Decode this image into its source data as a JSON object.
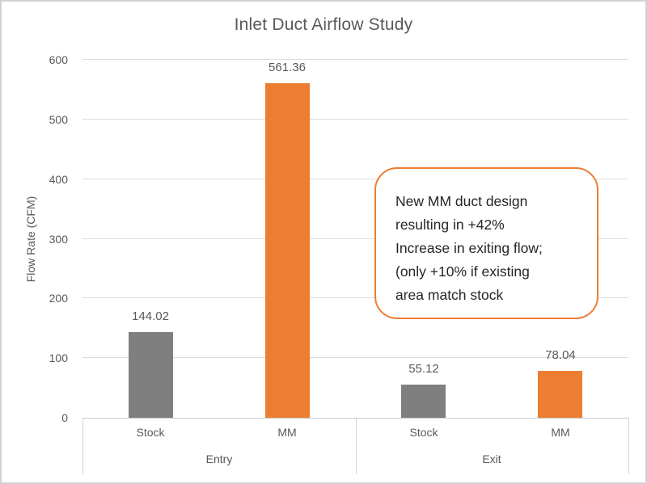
{
  "chart_data": {
    "type": "bar",
    "title": "Inlet Duct Airflow Study",
    "xlabel": "",
    "ylabel": "Flow Rate (CFM)",
    "ylim": [
      0,
      600
    ],
    "y_ticks": [
      0,
      100,
      200,
      300,
      400,
      500,
      600
    ],
    "grid": true,
    "legend": false,
    "categories": [
      "Stock",
      "MM",
      "Stock",
      "MM"
    ],
    "group_labels": [
      "Entry",
      "Exit"
    ],
    "groups": [
      {
        "label": "Entry",
        "bars": [
          {
            "category": "Stock",
            "value": 144.02,
            "data_label": "144.02",
            "color": "#7F7F7F"
          },
          {
            "category": "MM",
            "value": 561.36,
            "data_label": "561.36",
            "color": "#ED7D31"
          }
        ]
      },
      {
        "label": "Exit",
        "bars": [
          {
            "category": "Stock",
            "value": 55.12,
            "data_label": "55.12",
            "color": "#7F7F7F"
          },
          {
            "category": "MM",
            "value": 78.04,
            "data_label": "78.04",
            "color": "#ED7D31"
          }
        ]
      }
    ],
    "annotation": "New MM duct design resulting in +42% Increase in exiting flow; (only +10% if existing area match stock",
    "annotation_lines": [
      "New MM duct design",
      "resulting in +42%",
      "Increase in exiting flow;",
      "(only +10% if existing",
      "area match stock"
    ],
    "colors": {
      "stock_series": "#7F7F7F",
      "mm_series": "#ED7D31",
      "gridline": "#DCDCDC",
      "text": "#595959",
      "annotation_border": "#ED7D31",
      "annotation_text": "#262626"
    }
  }
}
